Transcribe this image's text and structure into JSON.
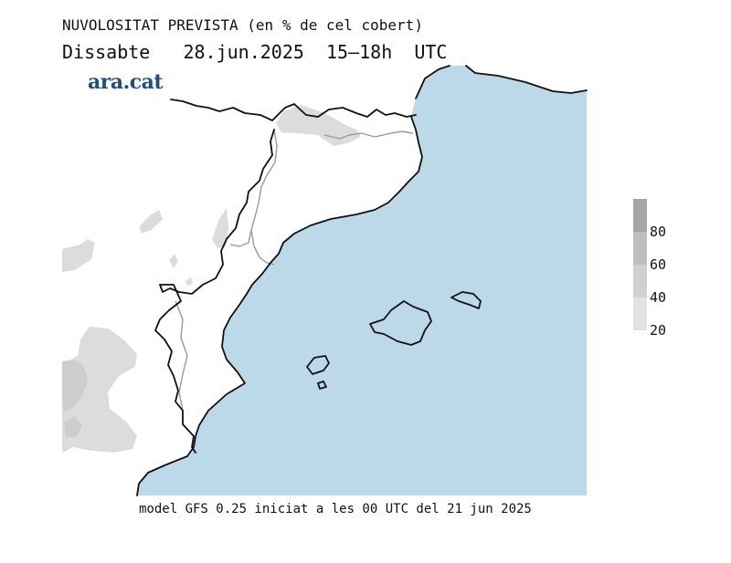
{
  "header": {
    "title": "NUVOLOSITAT PREVISTA (en % de cel cobert)",
    "subtitle": "Dissabte   28.jun.2025  15–18h  UTC",
    "brand": "ara.cat"
  },
  "legend": {
    "labels": [
      "80",
      "60",
      "40",
      "20"
    ],
    "colors": [
      "#a6a6a6",
      "#bebebe",
      "#d0d0d0",
      "#e2e2e2"
    ]
  },
  "footer": "model GFS 0.25 iniciat a les 00 UTC del 21 jun 2025",
  "colors": {
    "sea": "#bcd9ea",
    "land": "#ffffff",
    "cloud_light": "#dcdcdc",
    "cloud_mid": "#cdcdcd",
    "coastline": "#111111",
    "border": "#9a9a9a"
  }
}
